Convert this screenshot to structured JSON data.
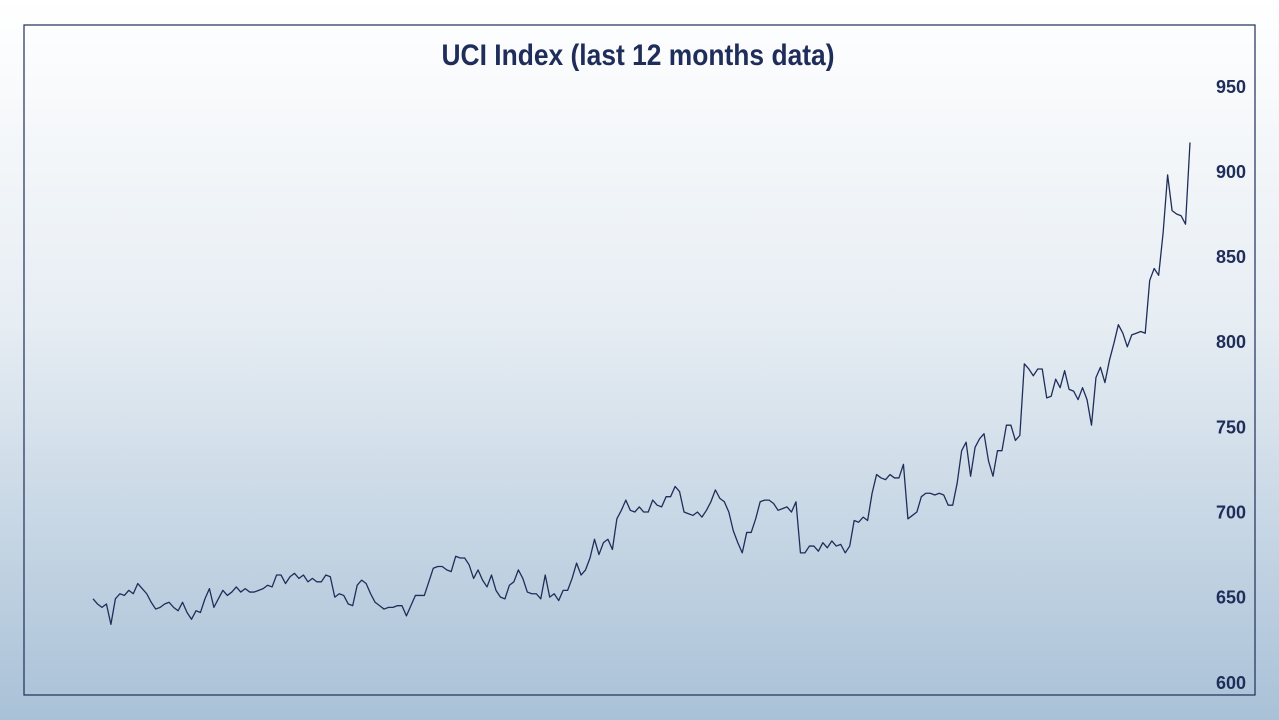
{
  "chart_data": {
    "type": "line",
    "title": "UCI Index (last 12 months data)",
    "color": "#1f2d5a",
    "values": [
      650,
      647,
      645,
      647,
      635,
      650,
      653,
      652,
      655,
      653,
      659,
      656,
      653,
      648,
      644,
      645,
      647,
      648,
      645,
      643,
      648,
      642,
      638,
      643,
      642,
      650,
      656,
      645,
      650,
      655,
      652,
      654,
      657,
      654,
      656,
      654,
      654,
      655,
      656,
      658,
      657,
      664,
      664,
      659,
      663,
      665,
      662,
      664,
      660,
      662,
      660,
      660,
      664,
      663,
      651,
      653,
      652,
      647,
      646,
      658,
      661,
      659,
      653,
      648,
      646,
      644,
      645,
      645,
      646,
      646,
      640,
      646,
      652,
      652,
      652,
      660,
      668,
      669,
      669,
      667,
      666,
      675,
      674,
      674,
      670,
      662,
      667,
      661,
      657,
      664,
      655,
      651,
      650,
      658,
      660,
      667,
      662,
      654,
      653,
      653,
      650,
      664,
      651,
      653,
      649,
      655,
      655,
      662,
      671,
      664,
      667,
      674,
      685,
      676,
      683,
      685,
      679,
      697,
      702,
      708,
      702,
      701,
      704,
      701,
      701,
      708,
      705,
      704,
      710,
      710,
      716,
      713,
      701,
      700,
      699,
      701,
      698,
      702,
      707,
      714,
      709,
      707,
      701,
      690,
      683,
      677,
      689,
      689,
      697,
      707,
      708,
      708,
      706,
      702,
      703,
      704,
      701,
      707,
      677,
      677,
      681,
      681,
      678,
      683,
      680,
      684,
      681,
      682,
      677,
      681,
      696,
      695,
      698,
      696,
      712,
      723,
      721,
      720,
      723,
      721,
      721,
      729,
      697,
      699,
      701,
      710,
      712,
      712,
      711,
      712,
      711,
      705,
      705,
      718,
      737,
      742,
      722,
      739,
      744,
      747,
      731,
      722,
      737,
      737,
      752,
      752,
      743,
      746,
      788,
      785,
      781,
      785,
      785,
      768,
      769,
      779,
      774,
      784,
      773,
      772,
      767,
      774,
      767,
      752,
      780,
      786,
      777,
      790,
      800,
      811,
      806,
      798,
      805,
      806,
      807,
      806,
      837,
      844,
      840,
      865,
      899,
      878,
      876,
      875,
      870,
      918
    ],
    "ylim": [
      600,
      950
    ],
    "yticks": [
      600,
      650,
      700,
      750,
      800,
      850,
      900,
      950
    ],
    "grid": false
  }
}
